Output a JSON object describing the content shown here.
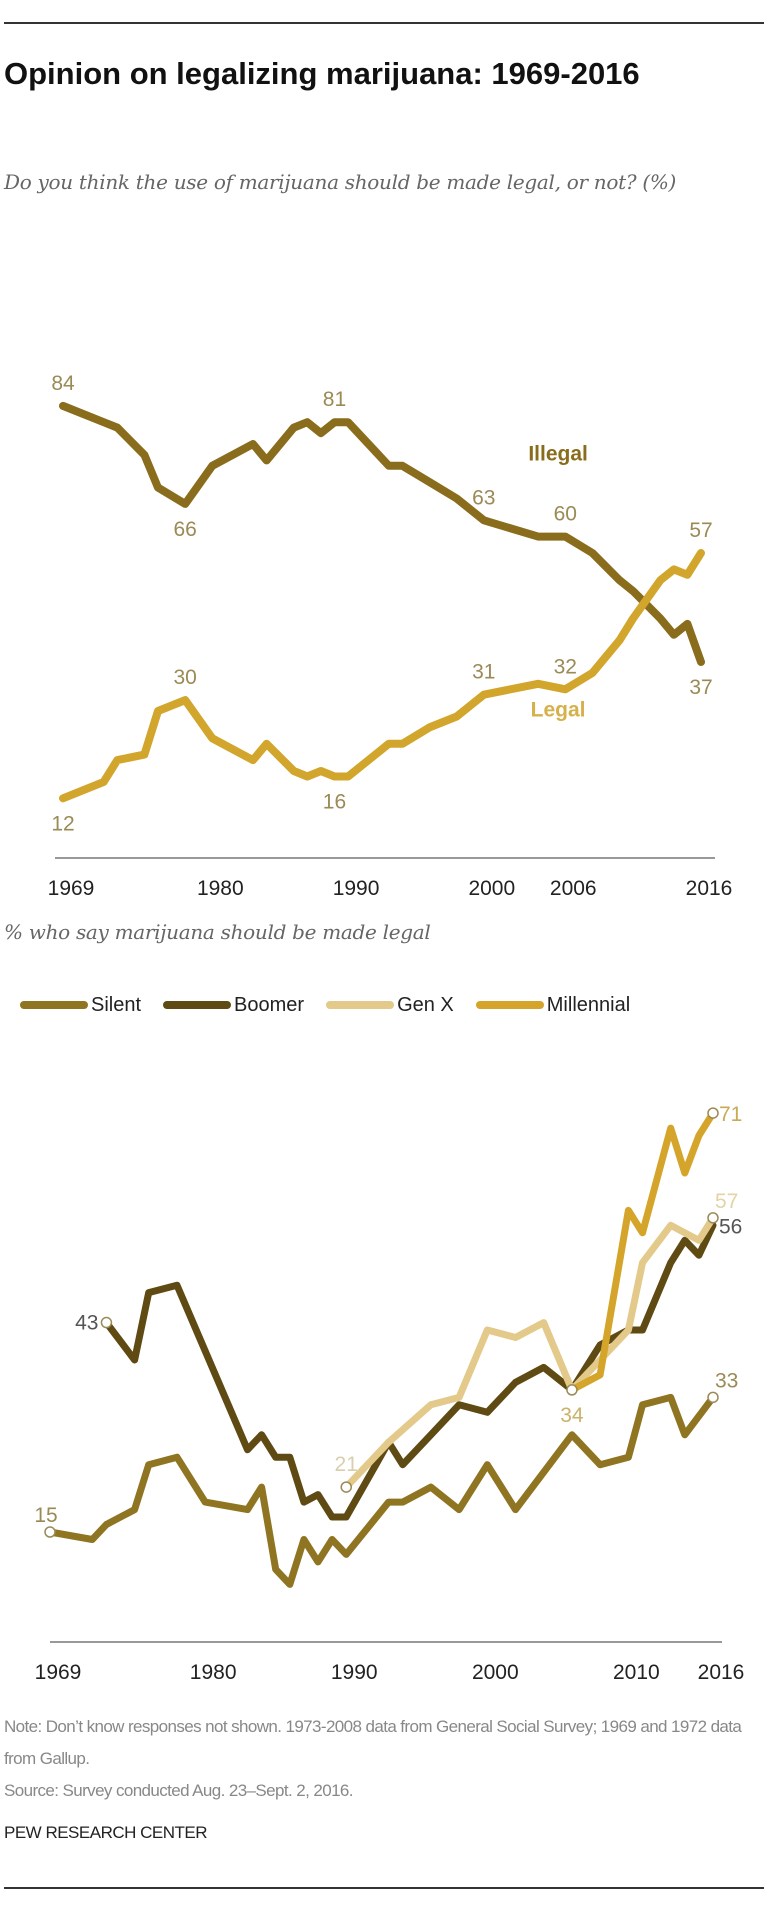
{
  "header": {
    "title": "Opinion on legalizing marijuana: 1969-2016",
    "subtitle": "Do you think the use of marijuana should be made legal, or not? (%)"
  },
  "section2": {
    "subtitle": "% who say marijuana should be made legal"
  },
  "footer": {
    "note": "Note: Don’t know responses not shown. 1973-2008 data from General Social Survey; 1969 and 1972 data from Gallup.",
    "source": "Source: Survey conducted Aug. 23–Sept. 2, 2016.",
    "org": "PEW RESEARCH CENTER"
  },
  "chart_data": [
    {
      "type": "line",
      "xlim": [
        1969,
        2016
      ],
      "ylim": [
        12,
        84
      ],
      "grid": false,
      "xticks": [
        1969,
        1980,
        1990,
        2000,
        2006,
        2016
      ],
      "series": [
        {
          "name": "Illegal",
          "color": "#8a6d1c",
          "x": [
            1969,
            1972,
            1973,
            1975,
            1976,
            1978,
            1980,
            1983,
            1984,
            1986,
            1987,
            1988,
            1989,
            1990,
            1993,
            1994,
            1996,
            1998,
            2000,
            2004,
            2006,
            2008,
            2010,
            2011,
            2013,
            2014,
            2015,
            2016
          ],
          "y": [
            84,
            81,
            80,
            75,
            69,
            66,
            73,
            77,
            74,
            80,
            81,
            79,
            81,
            81,
            73,
            73,
            70,
            67,
            63,
            60,
            60,
            57,
            52,
            50,
            45,
            42,
            44,
            37
          ]
        },
        {
          "name": "Legal",
          "color": "#d2a62c",
          "x": [
            1969,
            1972,
            1973,
            1975,
            1976,
            1978,
            1980,
            1983,
            1984,
            1986,
            1987,
            1988,
            1989,
            1990,
            1993,
            1994,
            1996,
            1998,
            2000,
            2004,
            2006,
            2008,
            2010,
            2011,
            2013,
            2014,
            2015,
            2016
          ],
          "y": [
            12,
            15,
            19,
            20,
            28,
            30,
            23,
            19,
            22,
            17,
            16,
            17,
            16,
            16,
            22,
            22,
            25,
            27,
            31,
            33,
            32,
            35,
            41,
            45,
            52,
            54,
            53,
            57
          ]
        }
      ],
      "annotations": [
        {
          "x": 1969,
          "y": 84,
          "text": "84",
          "pos": "above"
        },
        {
          "x": 1978,
          "y": 66,
          "text": "66",
          "pos": "below"
        },
        {
          "x": 1989,
          "y": 81,
          "text": "81",
          "pos": "above"
        },
        {
          "x": 2000,
          "y": 63,
          "text": "63",
          "pos": "above"
        },
        {
          "x": 2006,
          "y": 60,
          "text": "60",
          "pos": "above"
        },
        {
          "x": 2016,
          "y": 57,
          "text": "57",
          "pos": "above"
        },
        {
          "x": 2016,
          "y": 37,
          "text": "37",
          "pos": "below"
        },
        {
          "x": 1969,
          "y": 12,
          "text": "12",
          "pos": "below"
        },
        {
          "x": 1978,
          "y": 30,
          "text": "30",
          "pos": "above"
        },
        {
          "x": 1989,
          "y": 16,
          "text": "16",
          "pos": "below"
        },
        {
          "x": 2000,
          "y": 31,
          "text": "31",
          "pos": "above"
        },
        {
          "x": 2006,
          "y": 32,
          "text": "32",
          "pos": "above"
        }
      ],
      "series_labels": [
        {
          "text": "Illegal",
          "x": 2004,
          "y": 74,
          "color": "#8a6d1c"
        },
        {
          "text": "Legal",
          "x": 2004,
          "y": 27,
          "color": "#d6b04a"
        }
      ]
    },
    {
      "type": "line",
      "title": "% who say marijuana should be made legal",
      "xlim": [
        1969,
        2016
      ],
      "ylim": [
        8,
        71
      ],
      "grid": false,
      "legend": "top",
      "xticks": [
        1969,
        1980,
        1990,
        2000,
        2010,
        2016
      ],
      "series": [
        {
          "name": "Silent",
          "color": "#8f7521",
          "x": [
            1969,
            1972,
            1973,
            1975,
            1976,
            1978,
            1980,
            1983,
            1984,
            1985,
            1986,
            1987,
            1988,
            1989,
            1990,
            1993,
            1994,
            1996,
            1998,
            2000,
            2002,
            2006,
            2008,
            2010,
            2011,
            2013,
            2014,
            2016
          ],
          "y": [
            15,
            14,
            16,
            18,
            24,
            25,
            19,
            18,
            21,
            10,
            8,
            14,
            11,
            14,
            12,
            19,
            19,
            21,
            18,
            24,
            18,
            28,
            24,
            25,
            32,
            33,
            28,
            33
          ]
        },
        {
          "name": "Boomer",
          "color": "#5e4a12",
          "x": [
            1973,
            1975,
            1976,
            1978,
            1983,
            1984,
            1985,
            1986,
            1987,
            1988,
            1989,
            1990,
            1993,
            1994,
            1996,
            1998,
            2000,
            2002,
            2004,
            2006,
            2008,
            2010,
            2011,
            2013,
            2014,
            2015,
            2016
          ],
          "y": [
            43,
            38,
            47,
            48,
            26,
            28,
            25,
            25,
            19,
            20,
            17,
            17,
            27,
            24,
            28,
            32,
            31,
            35,
            37,
            34,
            40,
            42,
            42,
            51,
            54,
            52,
            56
          ]
        },
        {
          "name": "Gen X",
          "color": "#e3c98a",
          "x": [
            1990,
            1993,
            1996,
            1998,
            2000,
            2002,
            2004,
            2006,
            2008,
            2010,
            2011,
            2013,
            2014,
            2015,
            2016
          ],
          "y": [
            21,
            27,
            32,
            33,
            42,
            41,
            43,
            34,
            38,
            42,
            51,
            56,
            55,
            54,
            57
          ]
        },
        {
          "name": "Millennial",
          "color": "#d4a52a",
          "x": [
            2006,
            2008,
            2010,
            2011,
            2013,
            2014,
            2015,
            2016
          ],
          "y": [
            34,
            36,
            58,
            55,
            69,
            63,
            68,
            71
          ]
        }
      ],
      "annotations": [
        {
          "x": 1969,
          "y": 15,
          "text": "15",
          "pos": "above-left",
          "color": "#9a8a55"
        },
        {
          "x": 1973,
          "y": 43,
          "text": "43",
          "pos": "left",
          "color": "#555"
        },
        {
          "x": 1990,
          "y": 21,
          "text": "21",
          "pos": "above",
          "color": "#d8cfae"
        },
        {
          "x": 2006,
          "y": 34,
          "text": "34",
          "pos": "below",
          "color": "#c9b26a"
        },
        {
          "x": 2016,
          "y": 71,
          "text": "71",
          "pos": "right",
          "color": "#c9aa55"
        },
        {
          "x": 2016,
          "y": 57,
          "text": "57",
          "pos": "above-right",
          "color": "#e3d3a6"
        },
        {
          "x": 2016,
          "y": 56,
          "text": "56",
          "pos": "right",
          "color": "#555"
        },
        {
          "x": 2016,
          "y": 33,
          "text": "33",
          "pos": "above-right",
          "color": "#9a8a55"
        }
      ],
      "markers": [
        {
          "series": "Silent",
          "x": 1969,
          "y": 15
        },
        {
          "series": "Boomer",
          "x": 1973,
          "y": 43
        },
        {
          "series": "Gen X",
          "x": 1990,
          "y": 21
        },
        {
          "series": "Gen X",
          "x": 2006,
          "y": 34
        },
        {
          "series": "Millennial",
          "x": 2016,
          "y": 71
        },
        {
          "series": "Gen X",
          "x": 2016,
          "y": 57
        },
        {
          "series": "Silent",
          "x": 2016,
          "y": 33
        }
      ]
    }
  ]
}
